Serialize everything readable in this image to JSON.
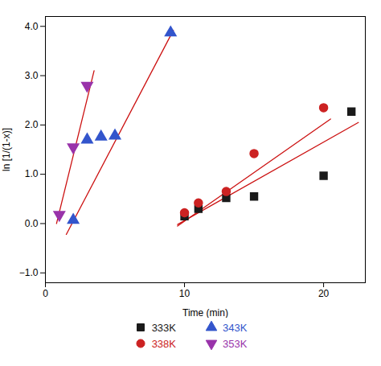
{
  "chart_data": {
    "type": "scatter",
    "xlabel": "Time (min)",
    "ylabel": "ln [1/(1-x)]",
    "xlim": [
      0,
      23
    ],
    "ylim": [
      -1.2,
      4.2
    ],
    "xticks": [
      0,
      10,
      20
    ],
    "yticks": [
      -1,
      0,
      1,
      2,
      3,
      4
    ],
    "legend": "bottom",
    "series": [
      {
        "name": "333K",
        "color": "#1a1a1a",
        "marker": "square",
        "x": [
          10,
          11,
          13,
          15,
          20,
          22
        ],
        "values": [
          0.15,
          0.3,
          0.52,
          0.55,
          0.97,
          2.27
        ],
        "fit": {
          "type": "line",
          "color": "#cc1111",
          "x": [
            9.5,
            22.5
          ],
          "values": [
            -0.02,
            2.05
          ]
        }
      },
      {
        "name": "338K",
        "color": "#cc2222",
        "marker": "circle",
        "x": [
          10,
          11,
          13,
          15,
          20
        ],
        "values": [
          0.22,
          0.42,
          0.65,
          1.42,
          2.35
        ],
        "fit": {
          "type": "line",
          "color": "#cc1111",
          "x": [
            9.5,
            20.5
          ],
          "values": [
            -0.05,
            2.12
          ]
        }
      },
      {
        "name": "343K",
        "color": "#3355cc",
        "marker": "triangle-up",
        "x": [
          2,
          3,
          4,
          5,
          9
        ],
        "values": [
          0.07,
          1.7,
          1.76,
          1.78,
          3.87
        ],
        "fit": {
          "type": "line",
          "color": "#cc1111",
          "x": [
            1.5,
            9.2
          ],
          "values": [
            -0.22,
            3.92
          ]
        }
      },
      {
        "name": "353K",
        "color": "#9933aa",
        "marker": "triangle-down",
        "x": [
          1,
          2,
          3
        ],
        "values": [
          0.18,
          1.55,
          2.8
        ],
        "fit": {
          "type": "line",
          "color": "#cc1111",
          "x": [
            0.8,
            3.5
          ],
          "values": [
            0.0,
            3.1
          ]
        }
      }
    ]
  }
}
